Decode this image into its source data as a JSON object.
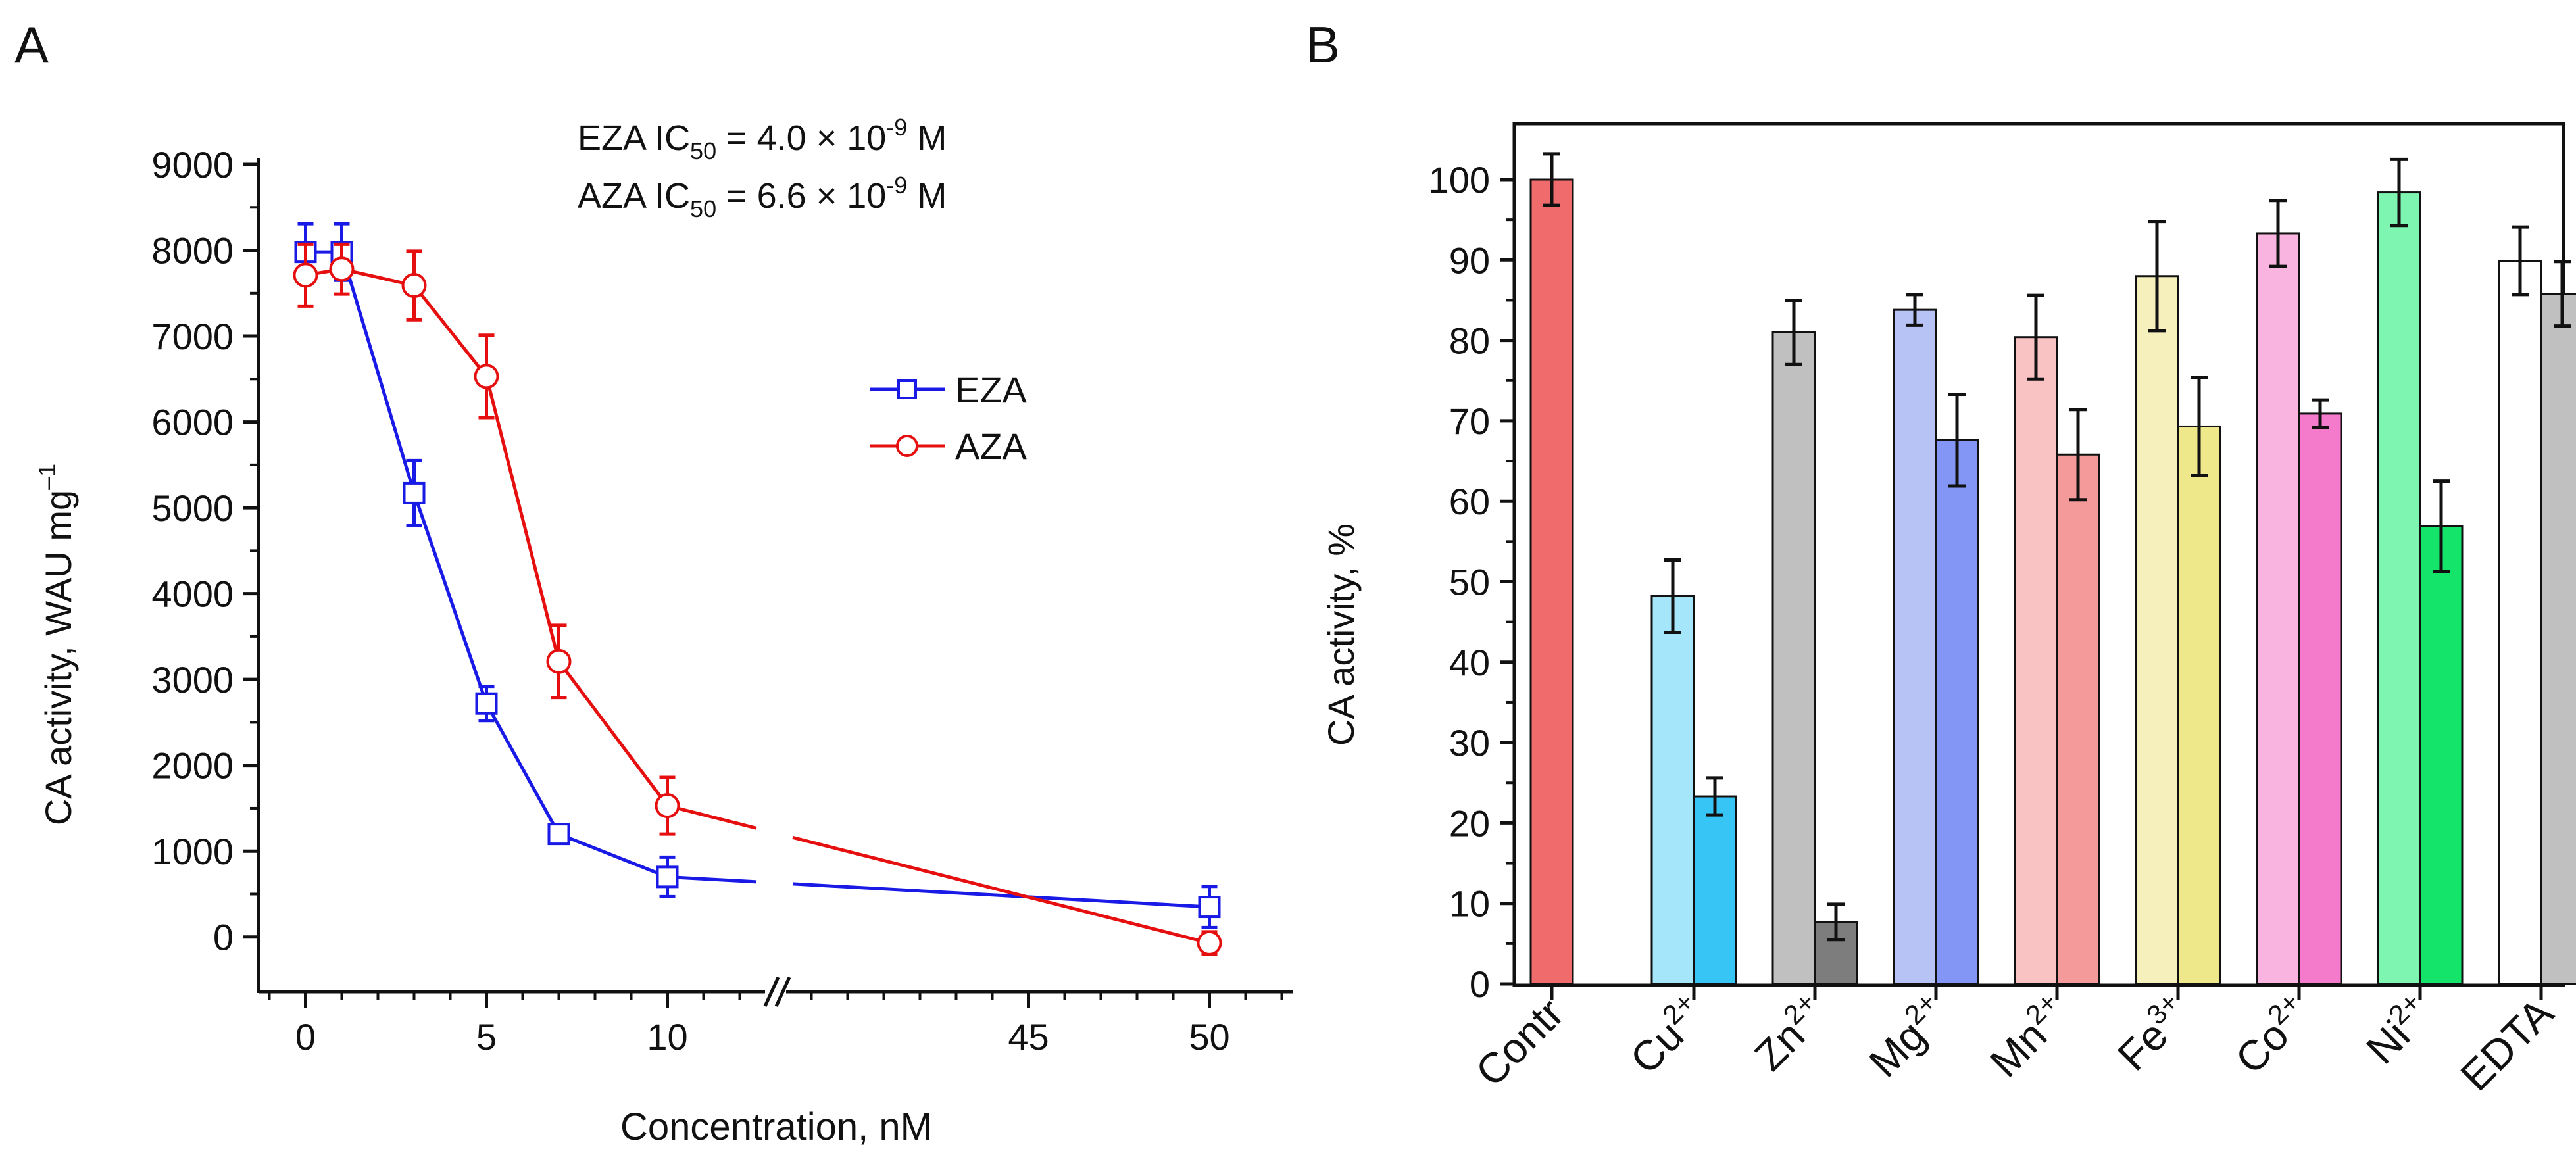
{
  "chart_data": [
    {
      "panel": "A",
      "type": "line",
      "panel_label": "A",
      "xlabel": "Concentration, nM",
      "ylabel": "CA activity, WAU mg",
      "ylabel_sup": "–1",
      "ylim": [
        -500,
        9000
      ],
      "yticks": [
        0,
        1000,
        2000,
        3000,
        4000,
        5000,
        6000,
        7000,
        8000,
        9000
      ],
      "x_segments": [
        {
          "range": [
            -1.3,
            12.7
          ],
          "ticks": [
            0,
            5,
            10
          ]
        },
        {
          "range": [
            38.3,
            52.3
          ],
          "ticks": [
            45,
            50
          ]
        }
      ],
      "x_tick_labels": [
        "0",
        "5",
        "10",
        "45",
        "50"
      ],
      "axis_break_marker": "//",
      "annotation_lines": [
        {
          "name": "EZA",
          "label": "EZA  IC",
          "sub": "50",
          "mid": " = 4.0 × 10",
          "sup": "-9",
          "unit": " M"
        },
        {
          "name": "AZA",
          "label": "AZA  IC",
          "sub": "50",
          "mid": " = 6.6 × 10",
          "sup": "-9",
          "unit": " M"
        }
      ],
      "legend_position": "right-center",
      "series": [
        {
          "name": "EZA",
          "color": "#1a1ae6",
          "marker": "square",
          "x": [
            0,
            1,
            3,
            5,
            7,
            10,
            50
          ],
          "y": [
            7980,
            7980,
            5170,
            2720,
            1200,
            700,
            350
          ],
          "err": [
            330,
            330,
            380,
            200,
            100,
            230,
            240
          ]
        },
        {
          "name": "AZA",
          "color": "#e60f0f",
          "marker": "circle",
          "x": [
            0,
            1,
            3,
            5,
            7,
            10,
            50
          ],
          "y": [
            7710,
            7780,
            7590,
            6530,
            3210,
            1530,
            -70
          ],
          "err": [
            360,
            290,
            400,
            480,
            420,
            330,
            130
          ]
        }
      ]
    },
    {
      "panel": "B",
      "type": "bar",
      "panel_label": "B",
      "xlabel": "",
      "ylabel": "CA activity, %",
      "ylim": [
        0,
        103
      ],
      "yticks": [
        0,
        10,
        20,
        30,
        40,
        50,
        60,
        70,
        80,
        90,
        100
      ],
      "groups": [
        {
          "label": "Contr",
          "sup": "",
          "bars": [
            {
              "value": 100,
              "err": 3.2,
              "color": "#f06b6b"
            }
          ]
        },
        {
          "label": "Cu",
          "sup": "2+",
          "bars": [
            {
              "value": 48.2,
              "err": 4.5,
              "color": "#a6e6fa"
            },
            {
              "value": 23.3,
              "err": 2.3,
              "color": "#36c5f5"
            }
          ]
        },
        {
          "label": "Zn",
          "sup": "2+",
          "bars": [
            {
              "value": 81.0,
              "err": 4.0,
              "color": "#c0c0c0"
            },
            {
              "value": 7.7,
              "err": 2.2,
              "color": "#7d7d7d"
            }
          ]
        },
        {
          "label": "Mg",
          "sup": "2+",
          "bars": [
            {
              "value": 83.8,
              "err": 1.9,
              "color": "#b7c2f5"
            },
            {
              "value": 67.6,
              "err": 5.7,
              "color": "#8496f5"
            }
          ]
        },
        {
          "label": "Mn",
          "sup": "2+",
          "bars": [
            {
              "value": 80.4,
              "err": 5.2,
              "color": "#fac3c3"
            },
            {
              "value": 65.8,
              "err": 5.6,
              "color": "#f59a9a"
            }
          ]
        },
        {
          "label": "Fe",
          "sup": "3+",
          "bars": [
            {
              "value": 88.0,
              "err": 6.8,
              "color": "#f6f0bc"
            },
            {
              "value": 69.3,
              "err": 6.1,
              "color": "#efe88a"
            }
          ]
        },
        {
          "label": "Co",
          "sup": "2+",
          "bars": [
            {
              "value": 93.3,
              "err": 4.1,
              "color": "#f9b5e0"
            },
            {
              "value": 70.9,
              "err": 1.7,
              "color": "#f47acc"
            }
          ]
        },
        {
          "label": "Ni",
          "sup": "2+",
          "bars": [
            {
              "value": 98.4,
              "err": 4.1,
              "color": "#7ef5b0"
            },
            {
              "value": 56.9,
              "err": 5.6,
              "color": "#14e46a"
            }
          ]
        },
        {
          "label": "EDTA",
          "sup": "",
          "bars": [
            {
              "value": 89.9,
              "err": 4.2,
              "color": "#ffffff"
            },
            {
              "value": 85.8,
              "err": 4.0,
              "color": "#c0c0c0"
            }
          ]
        }
      ]
    }
  ]
}
